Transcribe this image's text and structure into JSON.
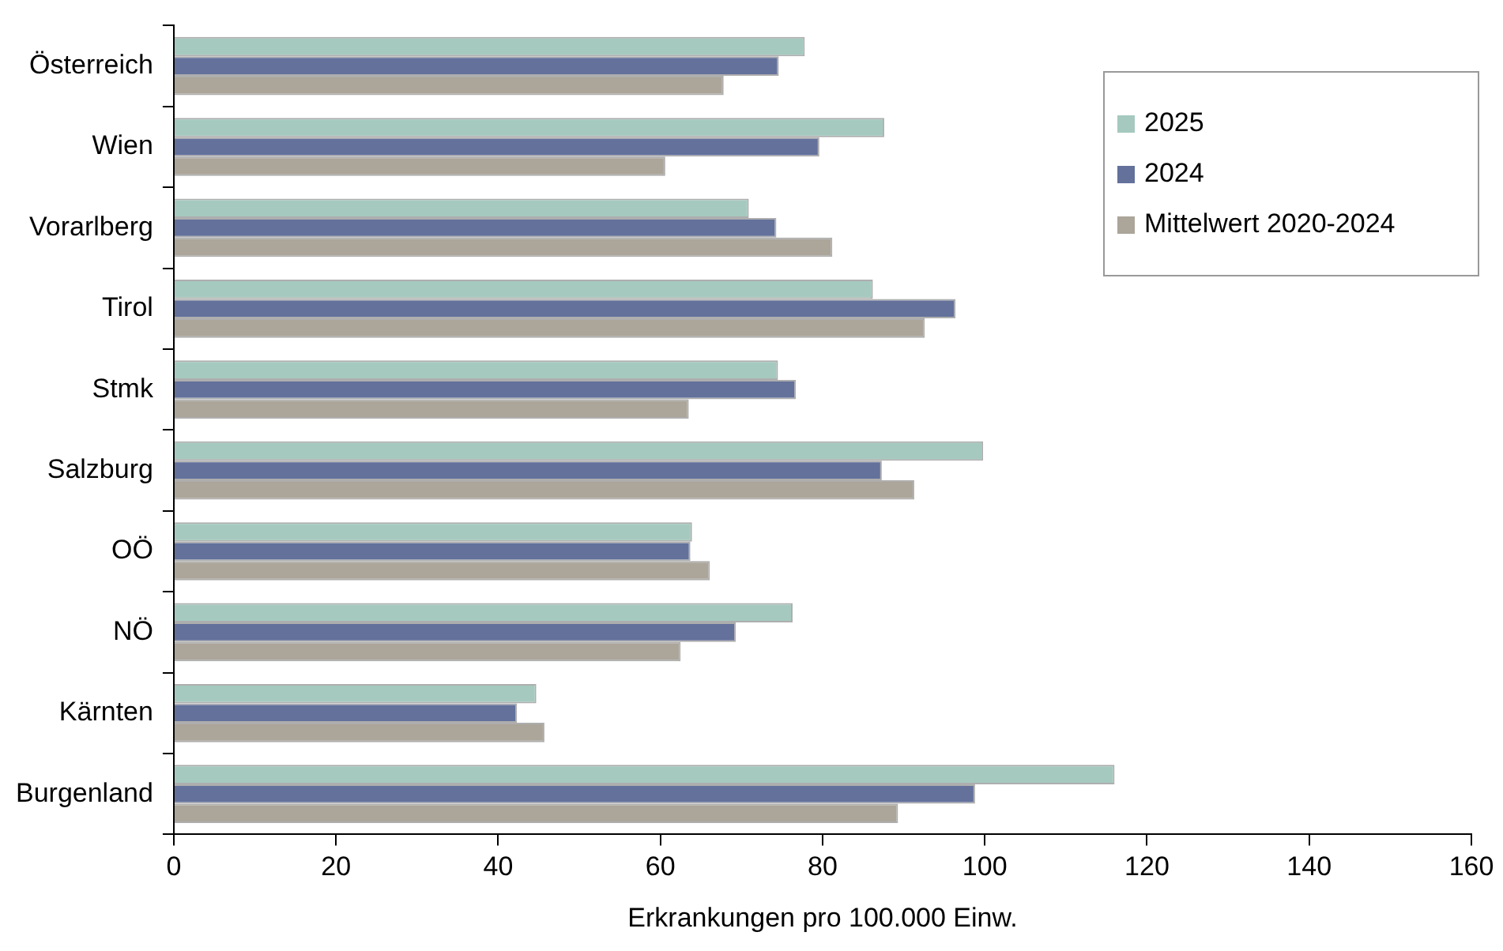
{
  "chart_data": {
    "type": "bar",
    "orientation": "horizontal",
    "xlabel": "Erkrankungen pro 100.000 Einw.",
    "categories": [
      "Österreich",
      "Wien",
      "Vorarlberg",
      "Tirol",
      "Stmk",
      "Salzburg",
      "OÖ",
      "NÖ",
      "Kärnten",
      "Burgenland"
    ],
    "series": [
      {
        "name": "2025",
        "color": "#a5c9bf",
        "values": [
          77.8,
          87.6,
          70.9,
          86.2,
          74.5,
          99.8,
          63.9,
          76.3,
          44.7,
          116
        ]
      },
      {
        "name": "2024",
        "color": "#63719b",
        "values": [
          74.6,
          79.6,
          74.3,
          96.4,
          76.7,
          87.3,
          63.7,
          69.3,
          42.3,
          98.8
        ]
      },
      {
        "name": "Mittelwert 2020-2024",
        "color": "#aba59a",
        "values": [
          67.8,
          60.6,
          81.2,
          92.6,
          63.5,
          91.3,
          66.1,
          62.5,
          45.7,
          89.3
        ]
      }
    ],
    "xlim": [
      0,
      160
    ],
    "xticks": [
      0,
      20,
      40,
      60,
      80,
      100,
      120,
      140,
      160
    ],
    "grid": false,
    "legend": "top right"
  }
}
